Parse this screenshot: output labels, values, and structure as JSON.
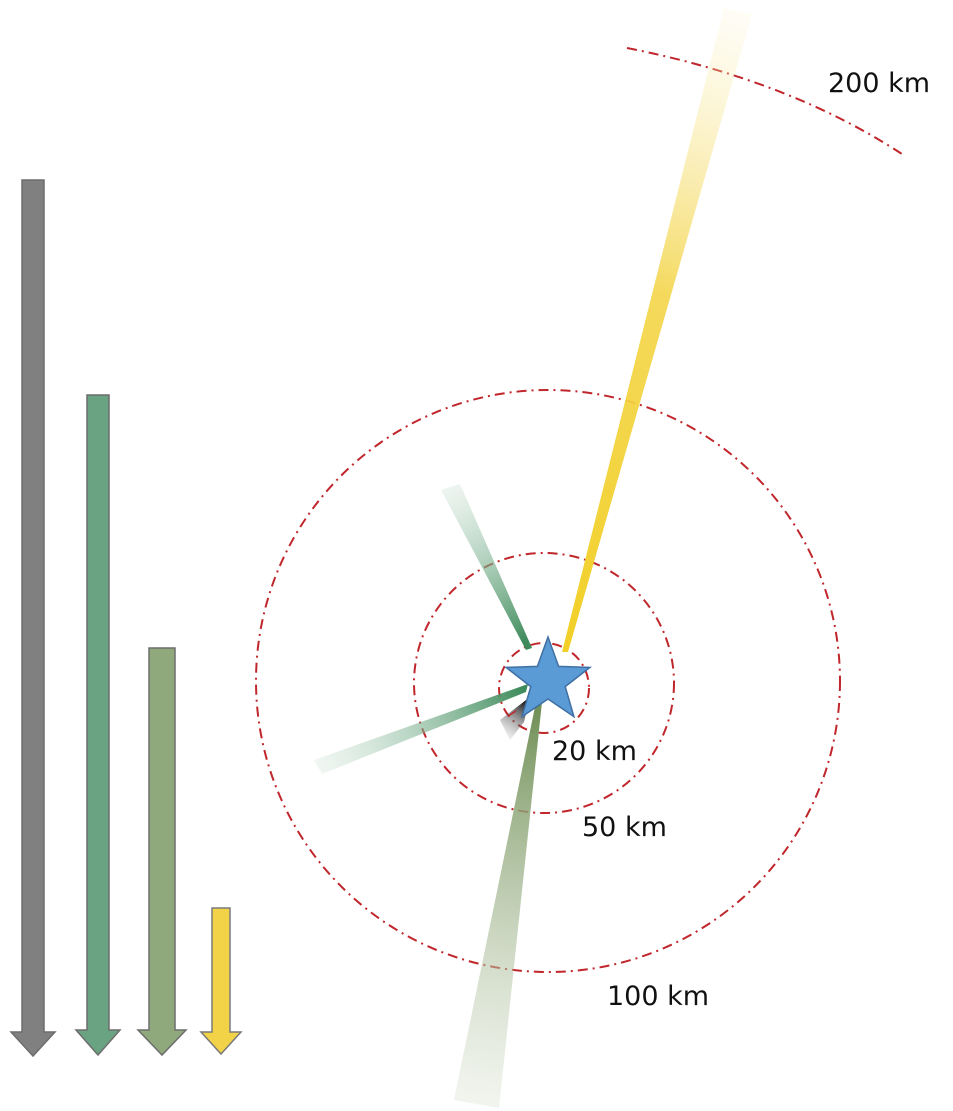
{
  "colors": {
    "ring": "#c0262b",
    "star_fill": "#5b9bd5",
    "star_stroke": "#3f6fa3",
    "arrow_stroke": "#6d6d6d",
    "gray": "#808080",
    "green": "#6aa382",
    "olive": "#8fa97c",
    "yellow": "#f2d347",
    "black": "#000000"
  },
  "rings": [
    {
      "label": "20 km"
    },
    {
      "label": "50 km"
    },
    {
      "label": "100 km"
    },
    {
      "label": "200 km"
    }
  ],
  "arrows": [
    {
      "color_key": "gray"
    },
    {
      "color_key": "green"
    },
    {
      "color_key": "olive"
    },
    {
      "color_key": "yellow"
    }
  ],
  "icons": {
    "center": "star-icon"
  }
}
